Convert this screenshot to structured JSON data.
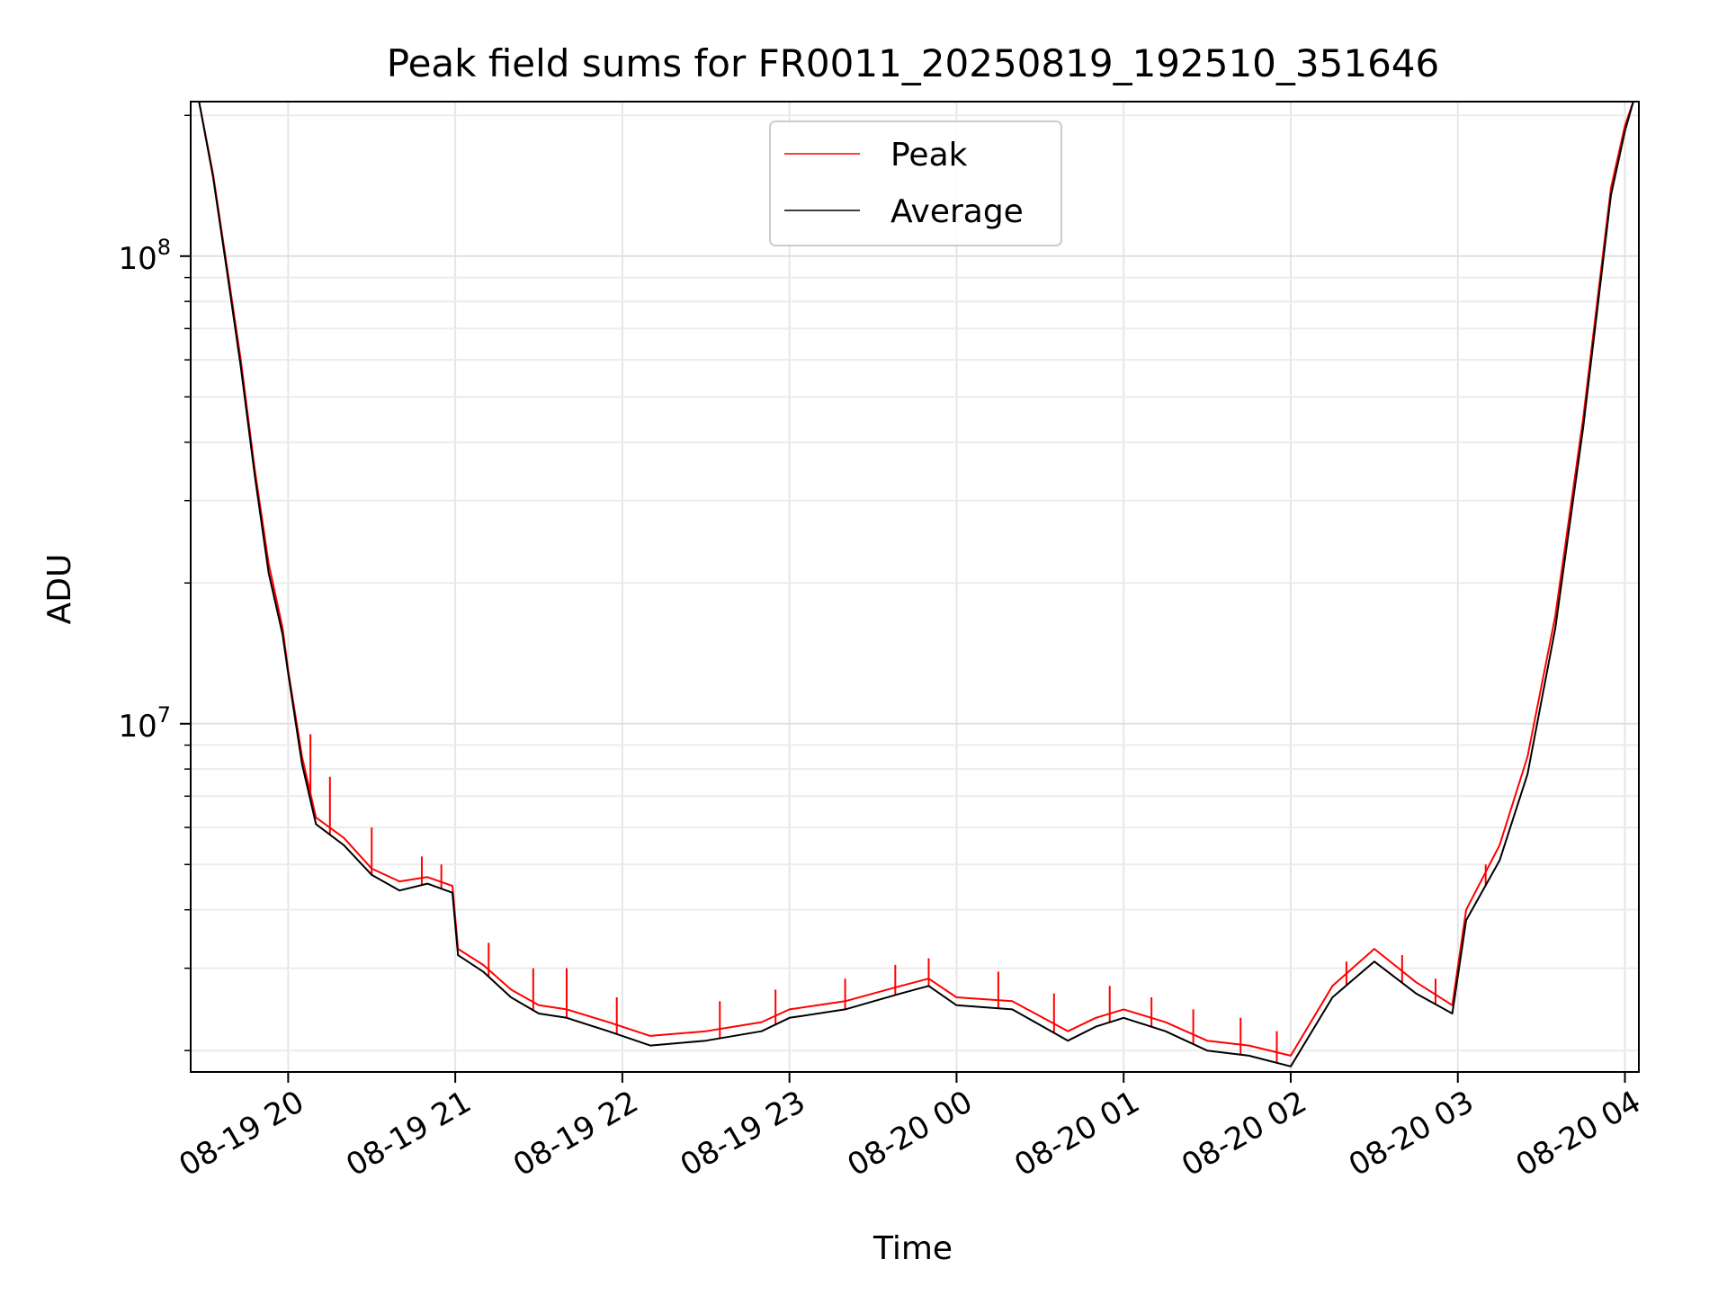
{
  "chart_data": {
    "type": "line",
    "title": "Peak field sums for FR0011_20250819_192510_351646",
    "xlabel": "Time",
    "ylabel": "ADU",
    "yscale": "log",
    "grid": true,
    "legend_position": "top-center",
    "xlim": [
      "2025-08-19 19:25",
      "2025-08-20 04:05"
    ],
    "ylim": [
      1800000,
      214000000
    ],
    "x_ticks": [
      {
        "value": "2025-08-19 20:00",
        "label": "08-19 20"
      },
      {
        "value": "2025-08-19 21:00",
        "label": "08-19 21"
      },
      {
        "value": "2025-08-19 22:00",
        "label": "08-19 22"
      },
      {
        "value": "2025-08-19 23:00",
        "label": "08-19 23"
      },
      {
        "value": "2025-08-20 00:00",
        "label": "08-20 00"
      },
      {
        "value": "2025-08-20 01:00",
        "label": "08-20 01"
      },
      {
        "value": "2025-08-20 02:00",
        "label": "08-20 02"
      },
      {
        "value": "2025-08-20 03:00",
        "label": "08-20 03"
      },
      {
        "value": "2025-08-20 04:00",
        "label": "08-20 04"
      }
    ],
    "y_ticks": [
      {
        "value": 10000000,
        "base": "10",
        "exp": "7"
      },
      {
        "value": 100000000,
        "base": "10",
        "exp": "8"
      }
    ],
    "series": [
      {
        "name": "Peak",
        "color": "#ff0000",
        "x": [
          "2025-08-19 19:28",
          "2025-08-19 19:33",
          "2025-08-19 19:38",
          "2025-08-19 19:43",
          "2025-08-19 19:48",
          "2025-08-19 19:53",
          "2025-08-19 19:58",
          "2025-08-19 20:00",
          "2025-08-19 20:05",
          "2025-08-19 20:10",
          "2025-08-19 20:20",
          "2025-08-19 20:30",
          "2025-08-19 20:40",
          "2025-08-19 20:50",
          "2025-08-19 20:59",
          "2025-08-19 21:01",
          "2025-08-19 21:10",
          "2025-08-19 21:20",
          "2025-08-19 21:30",
          "2025-08-19 21:40",
          "2025-08-19 21:55",
          "2025-08-19 22:10",
          "2025-08-19 22:30",
          "2025-08-19 22:50",
          "2025-08-19 23:00",
          "2025-08-19 23:20",
          "2025-08-19 23:40",
          "2025-08-19 23:50",
          "2025-08-20 00:00",
          "2025-08-20 00:20",
          "2025-08-20 00:40",
          "2025-08-20 00:50",
          "2025-08-20 01:00",
          "2025-08-20 01:15",
          "2025-08-20 01:30",
          "2025-08-20 01:45",
          "2025-08-20 02:00",
          "2025-08-20 02:15",
          "2025-08-20 02:30",
          "2025-08-20 02:45",
          "2025-08-20 02:58",
          "2025-08-20 03:03",
          "2025-08-20 03:15",
          "2025-08-20 03:25",
          "2025-08-20 03:35",
          "2025-08-20 03:45",
          "2025-08-20 03:55",
          "2025-08-20 04:00",
          "2025-08-20 04:03"
        ],
        "y": [
          214000000,
          150000000,
          95000000,
          60000000,
          35000000,
          22000000,
          16000000,
          13000000,
          8500000,
          6300000,
          5700000,
          4900000,
          4600000,
          4700000,
          4500000,
          3300000,
          3050000,
          2700000,
          2500000,
          2450000,
          2300000,
          2150000,
          2200000,
          2300000,
          2450000,
          2550000,
          2750000,
          2850000,
          2600000,
          2550000,
          2200000,
          2350000,
          2450000,
          2300000,
          2100000,
          2050000,
          1950000,
          2750000,
          3300000,
          2800000,
          2500000,
          4000000,
          5500000,
          8500000,
          17000000,
          45000000,
          140000000,
          190000000,
          214000000
        ],
        "spikes": [
          {
            "x": "2025-08-19 20:08",
            "y": 9500000
          },
          {
            "x": "2025-08-19 20:15",
            "y": 7700000
          },
          {
            "x": "2025-08-19 20:30",
            "y": 6000000
          },
          {
            "x": "2025-08-19 20:48",
            "y": 5200000
          },
          {
            "x": "2025-08-19 20:55",
            "y": 5000000
          },
          {
            "x": "2025-08-19 21:12",
            "y": 3400000
          },
          {
            "x": "2025-08-19 21:28",
            "y": 3000000
          },
          {
            "x": "2025-08-19 21:40",
            "y": 3000000
          },
          {
            "x": "2025-08-19 21:58",
            "y": 2600000
          },
          {
            "x": "2025-08-19 22:35",
            "y": 2550000
          },
          {
            "x": "2025-08-19 22:55",
            "y": 2700000
          },
          {
            "x": "2025-08-19 23:20",
            "y": 2850000
          },
          {
            "x": "2025-08-19 23:38",
            "y": 3050000
          },
          {
            "x": "2025-08-19 23:50",
            "y": 3150000
          },
          {
            "x": "2025-08-20 00:15",
            "y": 2950000
          },
          {
            "x": "2025-08-20 00:35",
            "y": 2650000
          },
          {
            "x": "2025-08-20 00:55",
            "y": 2750000
          },
          {
            "x": "2025-08-20 01:10",
            "y": 2600000
          },
          {
            "x": "2025-08-20 01:25",
            "y": 2450000
          },
          {
            "x": "2025-08-20 01:42",
            "y": 2350000
          },
          {
            "x": "2025-08-20 01:55",
            "y": 2200000
          },
          {
            "x": "2025-08-20 02:20",
            "y": 3100000
          },
          {
            "x": "2025-08-20 02:40",
            "y": 3200000
          },
          {
            "x": "2025-08-20 02:52",
            "y": 2850000
          },
          {
            "x": "2025-08-20 03:10",
            "y": 5000000
          },
          {
            "x": "2025-08-20 03:22",
            "y": 6900000
          }
        ]
      },
      {
        "name": "Average",
        "color": "#000000",
        "x": [
          "2025-08-19 19:28",
          "2025-08-19 19:33",
          "2025-08-19 19:38",
          "2025-08-19 19:43",
          "2025-08-19 19:48",
          "2025-08-19 19:53",
          "2025-08-19 19:58",
          "2025-08-19 20:00",
          "2025-08-19 20:05",
          "2025-08-19 20:10",
          "2025-08-19 20:20",
          "2025-08-19 20:30",
          "2025-08-19 20:40",
          "2025-08-19 20:50",
          "2025-08-19 20:59",
          "2025-08-19 21:01",
          "2025-08-19 21:10",
          "2025-08-19 21:20",
          "2025-08-19 21:30",
          "2025-08-19 21:40",
          "2025-08-19 21:55",
          "2025-08-19 22:10",
          "2025-08-19 22:30",
          "2025-08-19 22:50",
          "2025-08-19 23:00",
          "2025-08-19 23:20",
          "2025-08-19 23:40",
          "2025-08-19 23:50",
          "2025-08-20 00:00",
          "2025-08-20 00:20",
          "2025-08-20 00:40",
          "2025-08-20 00:50",
          "2025-08-20 01:00",
          "2025-08-20 01:15",
          "2025-08-20 01:30",
          "2025-08-20 01:45",
          "2025-08-20 02:00",
          "2025-08-20 02:15",
          "2025-08-20 02:30",
          "2025-08-20 02:45",
          "2025-08-20 02:58",
          "2025-08-20 03:03",
          "2025-08-20 03:15",
          "2025-08-20 03:25",
          "2025-08-20 03:35",
          "2025-08-20 03:45",
          "2025-08-20 03:55",
          "2025-08-20 04:00",
          "2025-08-20 04:03"
        ],
        "y": [
          214000000,
          148000000,
          93000000,
          58000000,
          34000000,
          21000000,
          15500000,
          12800000,
          8200000,
          6100000,
          5500000,
          4750000,
          4400000,
          4550000,
          4350000,
          3200000,
          2950000,
          2600000,
          2400000,
          2350000,
          2200000,
          2050000,
          2100000,
          2200000,
          2350000,
          2450000,
          2650000,
          2750000,
          2500000,
          2450000,
          2100000,
          2250000,
          2350000,
          2200000,
          2000000,
          1950000,
          1850000,
          2600000,
          3100000,
          2650000,
          2400000,
          3800000,
          5100000,
          7800000,
          16000000,
          43000000,
          135000000,
          185000000,
          214000000
        ]
      }
    ]
  }
}
